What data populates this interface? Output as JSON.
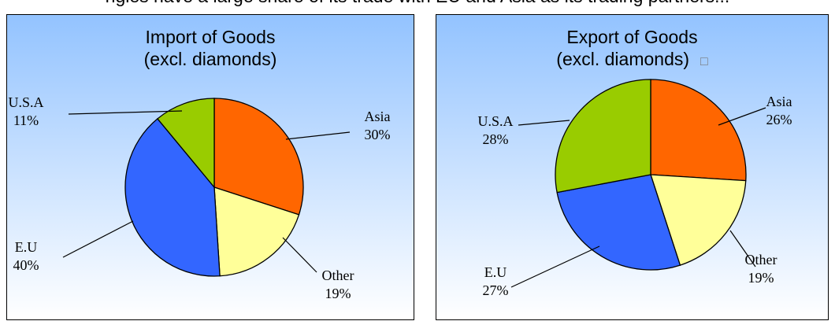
{
  "caption": "ngles have a large share of its trade with EU and Asia as its trading partners...",
  "chart_data": [
    {
      "type": "pie",
      "title_lines": [
        "Import of Goods",
        "(excl. diamonds)"
      ],
      "slices": [
        {
          "label": "Asia",
          "value": 30,
          "value_label": "30%",
          "color": "#ff6600"
        },
        {
          "label": "Other",
          "value": 19,
          "value_label": "19%",
          "color": "#ffff99"
        },
        {
          "label": "E.U",
          "value": 40,
          "value_label": "40%",
          "color": "#3366ff"
        },
        {
          "label": "U.S.A",
          "value": 11,
          "value_label": "11%",
          "color": "#99cc00"
        }
      ],
      "start_angle_deg": 0,
      "direction": "clockwise"
    },
    {
      "type": "pie",
      "title_lines": [
        "Export of Goods",
        "(excl. diamonds)"
      ],
      "title_suffix_glyph": "□",
      "slices": [
        {
          "label": "Asia",
          "value": 26,
          "value_label": "26%",
          "color": "#ff6600"
        },
        {
          "label": "Other",
          "value": 19,
          "value_label": "19%",
          "color": "#ffff99"
        },
        {
          "label": "E.U",
          "value": 27,
          "value_label": "27%",
          "color": "#3366ff"
        },
        {
          "label": "U.S.A",
          "value": 28,
          "value_label": "28%",
          "color": "#99cc00"
        }
      ],
      "start_angle_deg": 0,
      "direction": "clockwise"
    }
  ]
}
